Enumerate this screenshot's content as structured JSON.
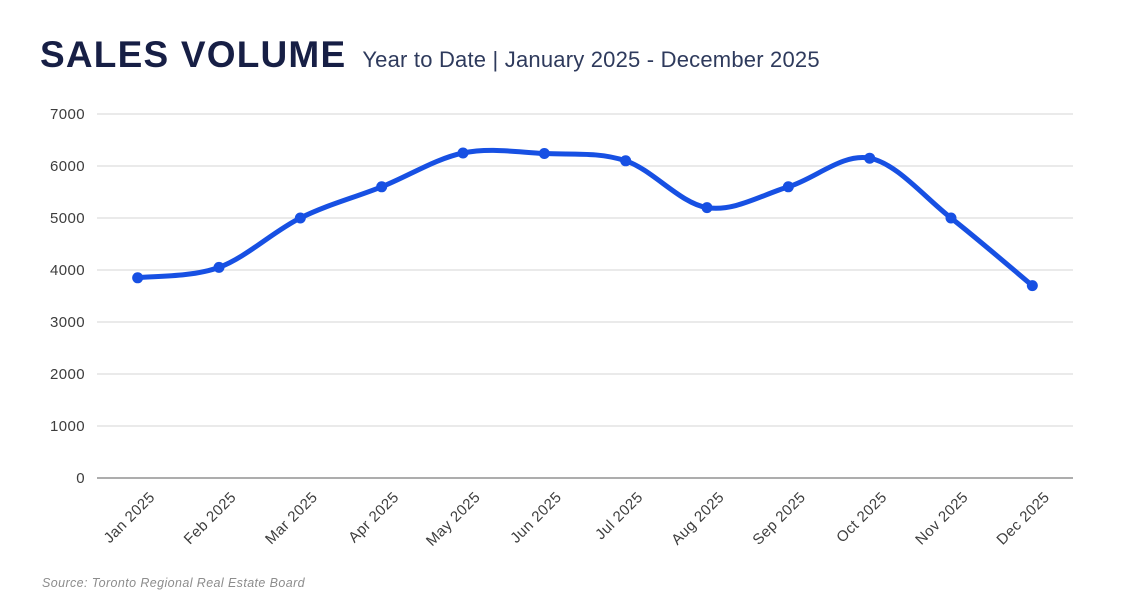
{
  "header": {
    "title": "SALES VOLUME",
    "subtitle": "Year to Date | January 2025 - December 2025"
  },
  "footer": {
    "source": "Source: Toronto Regional Real Estate Board"
  },
  "colors": {
    "line": "#1750E3",
    "title_navy": "#171F45",
    "subtitle_navy": "#2E3A5C",
    "axis_label": "#3D3D3D",
    "gridline": "#E4E4E4",
    "axis_line": "#ADADAD",
    "source_gray": "#8D8D8D",
    "background": "#FFFFFF"
  },
  "chart_data": {
    "type": "line",
    "title": "SALES VOLUME",
    "subtitle": "Year to Date | January 2025 - December 2025",
    "categories": [
      "Jan 2025",
      "Feb 2025",
      "Mar 2025",
      "Apr 2025",
      "May 2025",
      "Jun 2025",
      "Jul 2025",
      "Aug 2025",
      "Sep 2025",
      "Oct 2025",
      "Nov 2025",
      "Dec 2025"
    ],
    "series": [
      {
        "name": "Sales Volume",
        "values": [
          3850,
          4050,
          5000,
          5600,
          6250,
          6240,
          6100,
          5200,
          5600,
          6150,
          5000,
          3700
        ]
      }
    ],
    "xlabel": "",
    "ylabel": "",
    "ylim": [
      0,
      7000
    ],
    "yticks": [
      0,
      1000,
      2000,
      3000,
      4000,
      5000,
      6000,
      7000
    ],
    "grid": true,
    "legend": "none",
    "x_label_rotation": -45,
    "source": "Source: Toronto Regional Real Estate Board"
  }
}
